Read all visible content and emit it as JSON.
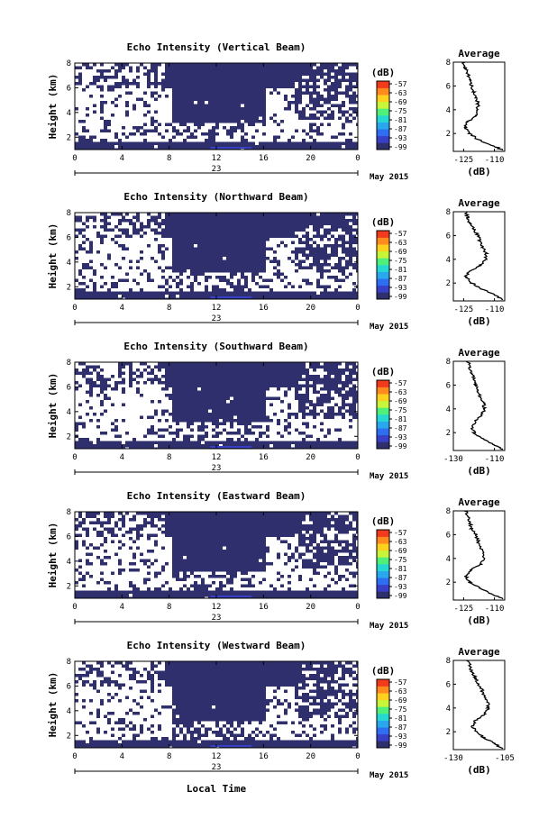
{
  "figure": {
    "x_axis_label": "Local Time",
    "date_label": "May 2015",
    "day_label": "23"
  },
  "colorbar": {
    "unit": "(dB)",
    "tick_labels": [
      "-57",
      "-63",
      "-69",
      "-75",
      "-81",
      "-87",
      "-93",
      "-99"
    ],
    "colors": [
      "#2e2f6c",
      "#3840c8",
      "#2d6ff0",
      "#29a8f0",
      "#26d9d0",
      "#4ff07a",
      "#c7f53a",
      "#ffd11f",
      "#ff8a1e",
      "#f23a1c"
    ]
  },
  "chart_data": [
    {
      "type": "heatmap",
      "title": "Echo Intensity (Vertical Beam)",
      "ylabel": "Height (km)",
      "x_ticks": [
        "0",
        "4",
        "8",
        "12",
        "16",
        "20",
        "0"
      ],
      "y_ticks": [
        "2",
        "4",
        "6",
        "8"
      ],
      "xlim": [
        0,
        24
      ],
      "ylim": [
        1,
        8
      ],
      "profile": {
        "title": "Average",
        "xlabel": "(dB)",
        "x_ticks": [
          "-125",
          "-110"
        ],
        "xlim": [
          -130,
          -105
        ],
        "y_ticks": [
          "2",
          "4",
          "6",
          "8"
        ],
        "ylim": [
          0.5,
          8
        ],
        "height": [
          0.6,
          1.0,
          1.5,
          2.0,
          2.5,
          3.0,
          3.5,
          4.0,
          4.5,
          5.0,
          5.5,
          6.0,
          6.5,
          7.0,
          7.5,
          8.0
        ],
        "value": [
          -106,
          -111,
          -118,
          -122,
          -124.5,
          -123,
          -119,
          -118,
          -118,
          -119,
          -120,
          -121,
          -122,
          -123,
          -124,
          -125
        ]
      }
    },
    {
      "type": "heatmap",
      "title": "Echo Intensity (Northward Beam)",
      "ylabel": "Height (km)",
      "x_ticks": [
        "0",
        "4",
        "8",
        "12",
        "16",
        "20",
        "0"
      ],
      "y_ticks": [
        "2",
        "4",
        "6",
        "8"
      ],
      "xlim": [
        0,
        24
      ],
      "ylim": [
        1,
        8
      ],
      "profile": {
        "title": "Average",
        "xlabel": "(dB)",
        "x_ticks": [
          "-125",
          "-110"
        ],
        "xlim": [
          -130,
          -105
        ],
        "y_ticks": [
          "2",
          "4",
          "6",
          "8"
        ],
        "ylim": [
          0.5,
          8
        ],
        "height": [
          0.6,
          1.0,
          1.5,
          2.0,
          2.5,
          3.0,
          3.5,
          4.0,
          4.5,
          5.0,
          5.5,
          6.0,
          6.5,
          7.0,
          7.5,
          8.0
        ],
        "value": [
          -106,
          -110,
          -116,
          -121,
          -124,
          -122,
          -117,
          -114,
          -114,
          -116,
          -117,
          -118,
          -120,
          -122,
          -123,
          -124
        ]
      }
    },
    {
      "type": "heatmap",
      "title": "Echo Intensity (Southward Beam)",
      "ylabel": "Height (km)",
      "x_ticks": [
        "0",
        "4",
        "8",
        "12",
        "16",
        "20",
        "0"
      ],
      "y_ticks": [
        "2",
        "4",
        "6",
        "8"
      ],
      "xlim": [
        0,
        24
      ],
      "ylim": [
        1,
        8
      ],
      "profile": {
        "title": "Average",
        "xlabel": "(dB)",
        "x_ticks": [
          "-130",
          "-110"
        ],
        "xlim": [
          -130,
          -105
        ],
        "y_ticks": [
          "2",
          "4",
          "6",
          "8"
        ],
        "ylim": [
          0.5,
          8
        ],
        "height": [
          0.6,
          1.0,
          1.5,
          2.0,
          2.5,
          3.0,
          3.5,
          4.0,
          4.5,
          5.0,
          5.5,
          6.0,
          6.5,
          7.0,
          7.5,
          8.0
        ],
        "value": [
          -106,
          -110,
          -116,
          -120,
          -121,
          -119,
          -116,
          -115,
          -115,
          -117,
          -118,
          -119,
          -120,
          -121,
          -122,
          -123
        ]
      }
    },
    {
      "type": "heatmap",
      "title": "Echo Intensity (Eastward Beam)",
      "ylabel": "Height (km)",
      "x_ticks": [
        "0",
        "4",
        "8",
        "12",
        "16",
        "20",
        "0"
      ],
      "y_ticks": [
        "2",
        "4",
        "6",
        "8"
      ],
      "xlim": [
        0,
        24
      ],
      "ylim": [
        1,
        8
      ],
      "profile": {
        "title": "Average",
        "xlabel": "(dB)",
        "x_ticks": [
          "-125",
          "-110"
        ],
        "xlim": [
          -130,
          -105
        ],
        "y_ticks": [
          "2",
          "4",
          "6",
          "8"
        ],
        "ylim": [
          0.5,
          8
        ],
        "height": [
          0.6,
          1.0,
          1.5,
          2.0,
          2.5,
          3.0,
          3.5,
          4.0,
          4.5,
          5.0,
          5.5,
          6.0,
          6.5,
          7.0,
          7.5,
          8.0
        ],
        "value": [
          -106,
          -111,
          -117,
          -122,
          -124,
          -122,
          -117,
          -115,
          -115,
          -117,
          -118,
          -119,
          -121,
          -122,
          -123,
          -124
        ]
      }
    },
    {
      "type": "heatmap",
      "title": "Echo Intensity (Westward Beam)",
      "ylabel": "Height (km)",
      "x_ticks": [
        "0",
        "4",
        "8",
        "12",
        "16",
        "20",
        "0"
      ],
      "y_ticks": [
        "2",
        "4",
        "6",
        "8"
      ],
      "xlim": [
        0,
        24
      ],
      "ylim": [
        1,
        8
      ],
      "profile": {
        "title": "Average",
        "xlabel": "(dB)",
        "x_ticks": [
          "-130",
          "-105"
        ],
        "xlim": [
          -130,
          -105
        ],
        "y_ticks": [
          "2",
          "4",
          "6",
          "8"
        ],
        "ylim": [
          0.5,
          8
        ],
        "height": [
          0.6,
          1.0,
          1.5,
          2.0,
          2.5,
          3.0,
          3.5,
          4.0,
          4.5,
          5.0,
          5.5,
          6.0,
          6.5,
          7.0,
          7.5,
          8.0
        ],
        "value": [
          -106,
          -110,
          -115,
          -119,
          -121,
          -119,
          -115,
          -113,
          -113,
          -115,
          -116,
          -118,
          -119,
          -121,
          -122,
          -123
        ]
      }
    }
  ]
}
